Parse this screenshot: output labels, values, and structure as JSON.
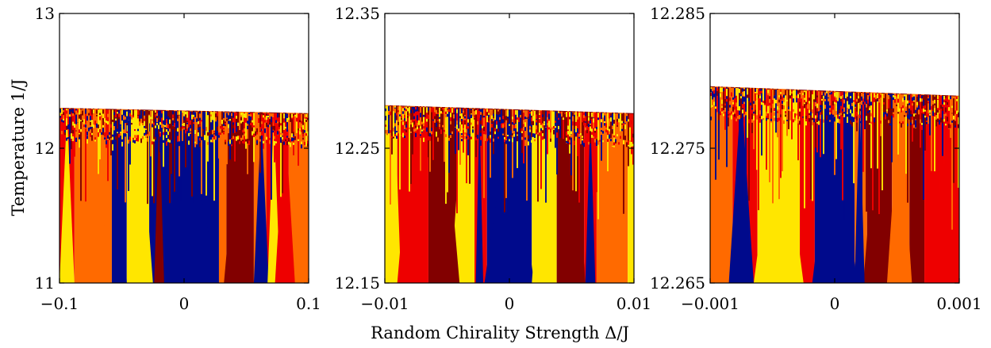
{
  "figure": {
    "xlabel": "Random Chirality Strength Δ/J",
    "ylabel": "Temperature 1/J"
  },
  "colors": {
    "navy": "#000a8c",
    "maroon": "#820000",
    "red": "#ee0000",
    "orange": "#ff6a00",
    "yellow": "#ffe600",
    "background": "#ffffff"
  },
  "chart_data": [
    {
      "type": "heatmap",
      "xlim": [
        -0.1,
        0.1
      ],
      "ylim": [
        11,
        13
      ],
      "xticks": [
        "−0.1",
        "0",
        "0.1"
      ],
      "yticks": [
        "11",
        "12",
        "13"
      ],
      "boundary": {
        "x": [
          -0.1,
          0.1
        ],
        "y": [
          12.3,
          12.26
        ]
      },
      "fringe_depth": 0.35,
      "wedges": [
        {
          "x": 0.0,
          "color": "navy",
          "halfwidth": 0.028
        },
        {
          "x": -0.052,
          "color": "navy",
          "halfwidth": 0.006
        },
        {
          "x": 0.062,
          "color": "navy",
          "halfwidth": 0.006
        },
        {
          "x": -0.035,
          "color": "yellow",
          "halfwidth": 0.01
        },
        {
          "x": -0.094,
          "color": "yellow",
          "halfwidth": 0.006
        },
        {
          "x": 0.072,
          "color": "yellow",
          "halfwidth": 0.005
        },
        {
          "x": -0.072,
          "color": "orange",
          "halfwidth": 0.012
        },
        {
          "x": 0.09,
          "color": "orange",
          "halfwidth": 0.008
        },
        {
          "x": 0.044,
          "color": "maroon",
          "halfwidth": 0.012
        },
        {
          "x": -0.02,
          "color": "maroon",
          "halfwidth": 0.004
        },
        {
          "x": 0.081,
          "color": "red",
          "halfwidth": 0.008
        }
      ],
      "bands": [
        {
          "from": -0.1,
          "to": -0.088,
          "color": "red"
        },
        {
          "from": -0.088,
          "to": -0.058,
          "color": "orange"
        },
        {
          "from": -0.058,
          "to": -0.046,
          "color": "navy"
        },
        {
          "from": -0.046,
          "to": -0.028,
          "color": "yellow"
        },
        {
          "from": -0.028,
          "to": 0.028,
          "color": "navy"
        },
        {
          "from": 0.028,
          "to": 0.034,
          "color": "orange"
        },
        {
          "from": 0.034,
          "to": 0.056,
          "color": "maroon"
        },
        {
          "from": 0.056,
          "to": 0.066,
          "color": "orange"
        },
        {
          "from": 0.066,
          "to": 0.084,
          "color": "red"
        },
        {
          "from": 0.084,
          "to": 0.1,
          "color": "orange"
        }
      ]
    },
    {
      "type": "heatmap",
      "xlim": [
        -0.01,
        0.01
      ],
      "ylim": [
        12.15,
        12.35
      ],
      "xticks": [
        "−0.01",
        "0",
        "0.01"
      ],
      "yticks": [
        "12.15",
        "12.25",
        "12.35"
      ],
      "boundary": {
        "x": [
          -0.01,
          0.01
        ],
        "y": [
          12.282,
          12.276
        ]
      },
      "fringe_depth": 0.4,
      "wedges": [
        {
          "x": 0.0,
          "color": "navy",
          "halfwidth": 0.002
        },
        {
          "x": -0.0092,
          "color": "yellow",
          "halfwidth": 0.0005
        },
        {
          "x": -0.0038,
          "color": "yellow",
          "halfwidth": 0.0009
        },
        {
          "x": 0.0028,
          "color": "yellow",
          "halfwidth": 0.001
        },
        {
          "x": -0.0052,
          "color": "maroon",
          "halfwidth": 0.0012
        },
        {
          "x": 0.0052,
          "color": "maroon",
          "halfwidth": 0.0009
        },
        {
          "x": -0.0078,
          "color": "red",
          "halfwidth": 0.0012
        },
        {
          "x": 0.0082,
          "color": "orange",
          "halfwidth": 0.0012
        },
        {
          "x": 0.0065,
          "color": "navy",
          "halfwidth": 0.0004
        },
        {
          "x": -0.0024,
          "color": "navy",
          "halfwidth": 0.0003
        }
      ],
      "bands": [
        {
          "from": -0.01,
          "to": -0.009,
          "color": "yellow"
        },
        {
          "from": -0.009,
          "to": -0.0065,
          "color": "red"
        },
        {
          "from": -0.0065,
          "to": -0.0042,
          "color": "maroon"
        },
        {
          "from": -0.0042,
          "to": -0.0028,
          "color": "yellow"
        },
        {
          "from": -0.0028,
          "to": -0.0018,
          "color": "red"
        },
        {
          "from": -0.0018,
          "to": 0.0018,
          "color": "navy"
        },
        {
          "from": 0.0018,
          "to": 0.0038,
          "color": "yellow"
        },
        {
          "from": 0.0038,
          "to": 0.006,
          "color": "maroon"
        },
        {
          "from": 0.006,
          "to": 0.007,
          "color": "red"
        },
        {
          "from": 0.007,
          "to": 0.0095,
          "color": "orange"
        },
        {
          "from": 0.0095,
          "to": 0.01,
          "color": "yellow"
        }
      ]
    },
    {
      "type": "heatmap",
      "xlim": [
        -0.001,
        0.001
      ],
      "ylim": [
        12.265,
        12.285
      ],
      "xticks": [
        "−0.001",
        "0",
        "0.001"
      ],
      "yticks": [
        "12.265",
        "12.275",
        "12.285"
      ],
      "boundary": {
        "x": [
          -0.001,
          0.001
        ],
        "y": [
          12.2796,
          12.2789
        ]
      },
      "fringe_depth": 0.5,
      "wedges": [
        {
          "x": 0.0,
          "color": "navy",
          "halfwidth": 0.00018
        },
        {
          "x": -0.00045,
          "color": "yellow",
          "halfwidth": 0.0002
        },
        {
          "x": -0.00075,
          "color": "navy",
          "halfwidth": 0.0001
        },
        {
          "x": 0.00035,
          "color": "maroon",
          "halfwidth": 0.00012
        },
        {
          "x": 0.00052,
          "color": "orange",
          "halfwidth": 0.0001
        },
        {
          "x": 0.00085,
          "color": "red",
          "halfwidth": 0.00012
        },
        {
          "x": -0.00095,
          "color": "orange",
          "halfwidth": 0.0001
        },
        {
          "x": 0.0002,
          "color": "navy",
          "halfwidth": 4e-05
        }
      ],
      "bands": [
        {
          "from": -0.001,
          "to": -0.00082,
          "color": "orange"
        },
        {
          "from": -0.00082,
          "to": -0.00062,
          "color": "red"
        },
        {
          "from": -0.00062,
          "to": -0.00028,
          "color": "yellow"
        },
        {
          "from": -0.00028,
          "to": -0.00016,
          "color": "red"
        },
        {
          "from": -0.00016,
          "to": 0.00016,
          "color": "navy"
        },
        {
          "from": 0.00016,
          "to": 0.00026,
          "color": "orange"
        },
        {
          "from": 0.00026,
          "to": 0.00046,
          "color": "maroon"
        },
        {
          "from": 0.00046,
          "to": 0.0006,
          "color": "orange"
        },
        {
          "from": 0.0006,
          "to": 0.00072,
          "color": "maroon"
        },
        {
          "from": 0.00072,
          "to": 0.001,
          "color": "red"
        }
      ]
    }
  ]
}
